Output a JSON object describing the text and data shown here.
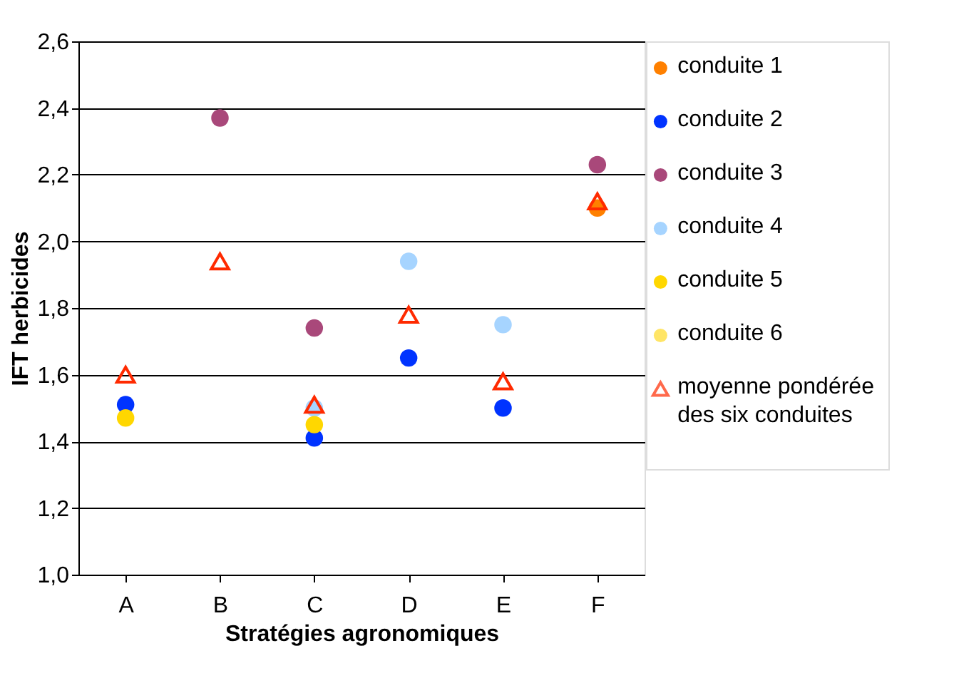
{
  "chart_data": {
    "type": "scatter",
    "xlabel": "Stratégies agronomiques",
    "ylabel": "IFT herbicides",
    "categories": [
      "A",
      "B",
      "C",
      "D",
      "E",
      "F"
    ],
    "series": [
      {
        "name": "conduite 1",
        "color": "#ff8000",
        "marker": "circle",
        "values": [
          null,
          null,
          null,
          null,
          null,
          2.1
        ]
      },
      {
        "name": "conduite 2",
        "color": "#0033ff",
        "marker": "circle",
        "values": [
          1.51,
          null,
          1.41,
          1.65,
          1.5,
          null
        ]
      },
      {
        "name": "conduite 3",
        "color": "#a9487a",
        "marker": "circle",
        "values": [
          null,
          2.37,
          1.74,
          null,
          null,
          2.23
        ]
      },
      {
        "name": "conduite 4",
        "color": "#a6d4ff",
        "marker": "circle",
        "values": [
          null,
          null,
          1.5,
          1.94,
          1.75,
          null
        ]
      },
      {
        "name": "conduite 5",
        "color": "#ffd700",
        "marker": "circle",
        "values": [
          1.47,
          null,
          1.45,
          null,
          null,
          null
        ]
      },
      {
        "name": "conduite 6",
        "color": "#ffe566",
        "marker": "circle",
        "values": [
          null,
          null,
          null,
          null,
          null,
          null
        ]
      },
      {
        "name": "moyenne pondérée\ndes six conduites",
        "color": "#ff2a00",
        "marker": "triangle",
        "values": [
          1.6,
          1.94,
          1.51,
          1.78,
          1.58,
          2.12
        ]
      }
    ],
    "ylim": [
      1.0,
      2.6
    ],
    "yticks": [
      {
        "value": 1.0,
        "label": "1,0"
      },
      {
        "value": 1.2,
        "label": "1,2"
      },
      {
        "value": 1.4,
        "label": "1,4"
      },
      {
        "value": 1.6,
        "label": "1,6"
      },
      {
        "value": 1.8,
        "label": "1,8"
      },
      {
        "value": 2.0,
        "label": "2,0"
      },
      {
        "value": 2.2,
        "label": "2,2"
      },
      {
        "value": 2.4,
        "label": "2,4"
      },
      {
        "value": 2.6,
        "label": "2,6"
      }
    ],
    "grid": "y",
    "legend": "right"
  }
}
